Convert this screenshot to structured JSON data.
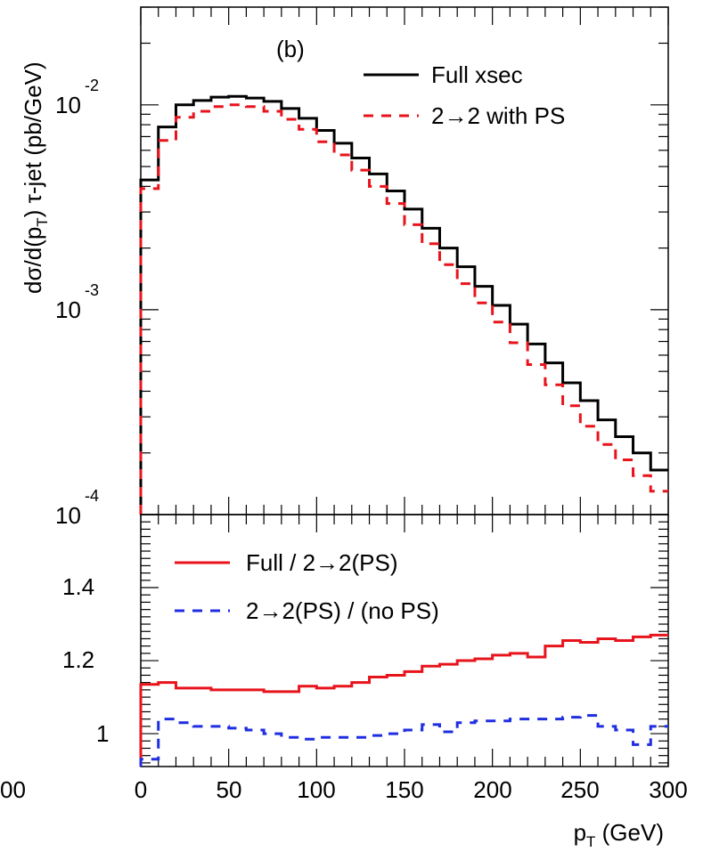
{
  "chart_data": [
    {
      "panel": "top",
      "type": "line",
      "step": true,
      "panel_label": "(b)",
      "ylabel_parts": {
        "a": "dσ/d(p",
        "sub": "T",
        "b": ") τ-jet (pb/GeV)"
      },
      "yscale": "log",
      "ylim": [
        0.0001,
        0.03
      ],
      "y_ticks": [
        {
          "base": "10",
          "exp": "-2",
          "value": 0.01
        },
        {
          "base": "10",
          "exp": "-3",
          "value": 0.001
        },
        {
          "base": "10",
          "exp": "-4",
          "value": 0.0001
        }
      ],
      "xlim": [
        0,
        300
      ],
      "bin_edges": [
        0,
        10,
        20,
        30,
        40,
        50,
        60,
        70,
        80,
        90,
        100,
        110,
        120,
        130,
        140,
        150,
        160,
        170,
        180,
        190,
        200,
        210,
        220,
        230,
        240,
        250,
        260,
        270,
        280,
        290,
        300
      ],
      "legend": [
        {
          "label": "Full xsec",
          "color": "#000000",
          "style": "solid"
        },
        {
          "label": "2→2 with PS",
          "color": "#e8141c",
          "style": "dashed"
        }
      ],
      "series": [
        {
          "name": "Full xsec",
          "color": "#000000",
          "dashed": false,
          "values": [
            0.0043,
            0.0078,
            0.01,
            0.0105,
            0.0109,
            0.011,
            0.0108,
            0.0104,
            0.0096,
            0.0086,
            0.0075,
            0.0065,
            0.0055,
            0.0046,
            0.0038,
            0.0031,
            0.0025,
            0.002,
            0.00162,
            0.0013,
            0.00105,
            0.00085,
            0.00068,
            0.00055,
            0.00044,
            0.00036,
            0.00029,
            0.00024,
            0.0002,
            0.000165
          ]
        },
        {
          "name": "2→2 with PS",
          "color": "#e8141c",
          "dashed": true,
          "values": [
            0.0039,
            0.0067,
            0.0087,
            0.0093,
            0.0098,
            0.01,
            0.0098,
            0.0093,
            0.0085,
            0.0076,
            0.0066,
            0.0057,
            0.0048,
            0.004,
            0.0033,
            0.0026,
            0.0021,
            0.00166,
            0.00134,
            0.00108,
            0.00087,
            0.00069,
            0.00054,
            0.00043,
            0.00034,
            0.00027,
            0.00022,
            0.000185,
            0.000155,
            0.00013
          ]
        }
      ]
    },
    {
      "panel": "bottom",
      "type": "line",
      "step": true,
      "xlabel_parts": {
        "a": "p",
        "sub": "T",
        "b": " (GeV)"
      },
      "ylim": [
        0.91,
        1.6
      ],
      "y_ticks": [
        {
          "label": "1",
          "value": 1.0
        },
        {
          "label": "1.2",
          "value": 1.2
        },
        {
          "label": "1.4",
          "value": 1.4
        }
      ],
      "xlim": [
        0,
        300
      ],
      "x_ticks": [
        {
          "label": "0",
          "value": 0
        },
        {
          "label": "50",
          "value": 50
        },
        {
          "label": "100",
          "value": 100
        },
        {
          "label": "150",
          "value": 150
        },
        {
          "label": "200",
          "value": 200
        },
        {
          "label": "250",
          "value": 250
        },
        {
          "label": "300",
          "value": 300
        }
      ],
      "clipped_tick_label": "00",
      "bin_edges": [
        0,
        10,
        20,
        30,
        40,
        50,
        60,
        70,
        80,
        90,
        100,
        110,
        120,
        130,
        140,
        150,
        160,
        170,
        180,
        190,
        200,
        210,
        220,
        230,
        240,
        250,
        260,
        270,
        280,
        290,
        300
      ],
      "legend": [
        {
          "label": "Full / 2→2(PS)",
          "color": "#e8141c",
          "style": "solid"
        },
        {
          "label": "2→2(PS) / (no PS)",
          "color": "#1f2ee0",
          "style": "dashed"
        }
      ],
      "series": [
        {
          "name": "Full / 2→2(PS)",
          "color": "#e8141c",
          "dashed": false,
          "values": [
            1.135,
            1.14,
            1.125,
            1.125,
            1.12,
            1.12,
            1.12,
            1.115,
            1.115,
            1.13,
            1.125,
            1.13,
            1.14,
            1.155,
            1.16,
            1.17,
            1.185,
            1.19,
            1.2,
            1.205,
            1.215,
            1.22,
            1.21,
            1.24,
            1.255,
            1.25,
            1.26,
            1.255,
            1.265,
            1.27
          ]
        },
        {
          "name": "2→2(PS) / (no PS)",
          "color": "#1f2ee0",
          "dashed": true,
          "values": [
            0.93,
            1.04,
            1.03,
            1.02,
            1.02,
            1.015,
            1.01,
            1.0,
            0.99,
            0.985,
            0.99,
            0.99,
            0.99,
            0.995,
            1.0,
            1.01,
            1.025,
            1.005,
            1.03,
            1.035,
            1.035,
            1.04,
            1.04,
            1.04,
            1.045,
            1.05,
            1.02,
            1.01,
            0.97,
            1.02
          ]
        }
      ]
    }
  ]
}
